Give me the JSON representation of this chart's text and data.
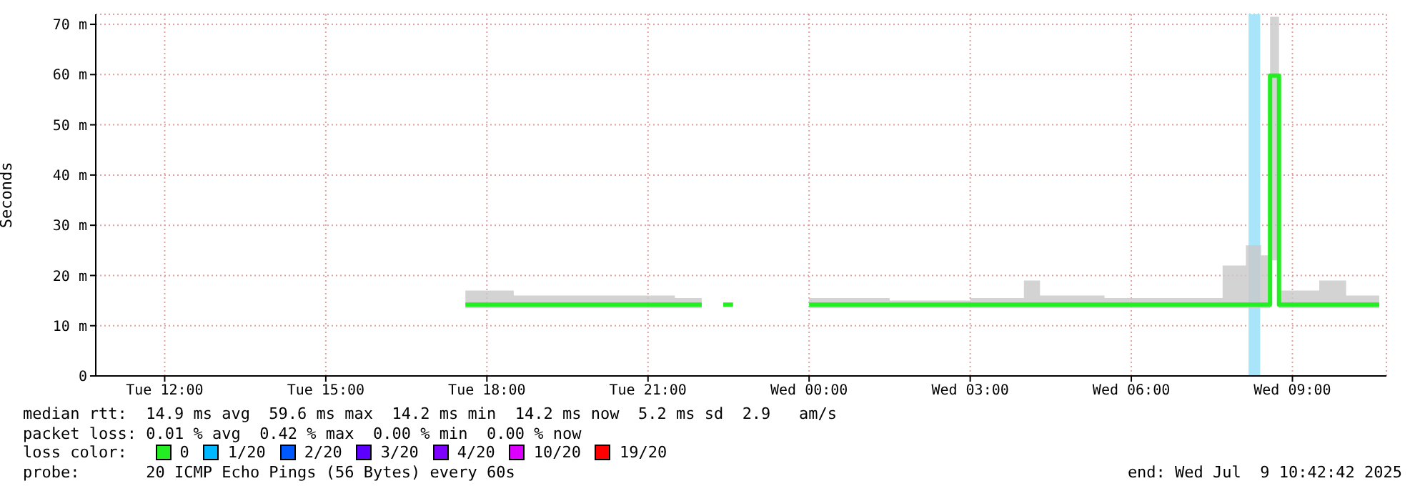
{
  "chart_data": {
    "type": "step",
    "ylabel": "Seconds",
    "legend_title": "loss color:",
    "legend": "bottom",
    "grid": true,
    "marker": "none",
    "line_style": "solid",
    "x": [
      "2025-07-08T17:36",
      "2025-07-08T18:30",
      "2025-07-08T19:30",
      "2025-07-08T20:30",
      "2025-07-08T21:30",
      "2025-07-08T22:00",
      "2025-07-08T22:01",
      "2025-07-08T22:24",
      "2025-07-08T22:35",
      "2025-07-08T22:36",
      "2025-07-09T00:00",
      "2025-07-09T01:30",
      "2025-07-09T03:00",
      "2025-07-09T04:00",
      "2025-07-09T04:18",
      "2025-07-09T05:30",
      "2025-07-09T07:00",
      "2025-07-09T07:42",
      "2025-07-09T08:08",
      "2025-07-09T08:25",
      "2025-07-09T08:35",
      "2025-07-09T08:45",
      "2025-07-09T09:30",
      "2025-07-09T10:00",
      "2025-07-09T10:37"
    ],
    "xlim": [
      "2025-07-08T10:43",
      "2025-07-09T10:45"
    ],
    "xticks": [
      {
        "value": "2025-07-08T12:00",
        "label": "Tue 12:00"
      },
      {
        "value": "2025-07-08T15:00",
        "label": "Tue 15:00"
      },
      {
        "value": "2025-07-08T18:00",
        "label": "Tue 18:00"
      },
      {
        "value": "2025-07-08T21:00",
        "label": "Tue 21:00"
      },
      {
        "value": "2025-07-09T00:00",
        "label": "Wed 00:00"
      },
      {
        "value": "2025-07-09T03:00",
        "label": "Wed 03:00"
      },
      {
        "value": "2025-07-09T06:00",
        "label": "Wed 06:00"
      },
      {
        "value": "2025-07-09T09:00",
        "label": "Wed 09:00"
      }
    ],
    "ylim": [
      0,
      72
    ],
    "yticks": [
      0,
      {
        "value": 10,
        "label": "10 m"
      },
      {
        "value": 20,
        "label": "20 m"
      },
      {
        "value": 30,
        "label": "30 m"
      },
      {
        "value": 40,
        "label": "40 m"
      },
      {
        "value": 50,
        "label": "50 m"
      },
      {
        "value": 60,
        "label": "60 m"
      },
      {
        "value": 70,
        "label": "70 m"
      }
    ],
    "series": [
      {
        "name": "0",
        "color": "#22ee22",
        "values": [
          14.2,
          14.2,
          14.2,
          14.2,
          14.2,
          14.2,
          null,
          14.2,
          14.2,
          null,
          14.2,
          14.2,
          14.2,
          14.2,
          14.2,
          14.2,
          14.2,
          14.2,
          14.2,
          14.2,
          59.8,
          14.2,
          14.2,
          14.2,
          14.2
        ],
        "lower": [
          13.5,
          13.5,
          13.5,
          13.5,
          13.5,
          13.5,
          null,
          null,
          null,
          null,
          13.5,
          13.5,
          13.5,
          13.5,
          13.5,
          13.5,
          13.5,
          13.5,
          13.5,
          13.5,
          23,
          13.5,
          13.5,
          13.5,
          13.5
        ],
        "upper": [
          17,
          16,
          16,
          16,
          15.5,
          15,
          null,
          null,
          null,
          null,
          15.5,
          15,
          15.5,
          19,
          16,
          15.5,
          15.5,
          22,
          26,
          24,
          71.5,
          17,
          19,
          16,
          16
        ]
      },
      {
        "name": "1/20",
        "color": "#00b8ff",
        "values": [
          null,
          null,
          null,
          null,
          null,
          null,
          null,
          null,
          null,
          null,
          null,
          null,
          null,
          null,
          null,
          null,
          null,
          null,
          null,
          null,
          null,
          null,
          null,
          null,
          null
        ]
      },
      {
        "name": "2/20",
        "color": "#0059ff",
        "values": [
          null,
          null,
          null,
          null,
          null,
          null,
          null,
          null,
          null,
          null,
          null,
          null,
          null,
          null,
          null,
          null,
          null,
          null,
          null,
          null,
          null,
          null,
          null,
          null,
          null
        ]
      },
      {
        "name": "3/20",
        "color": "#5e00ff",
        "values": [
          null,
          null,
          null,
          null,
          null,
          null,
          null,
          null,
          null,
          null,
          null,
          null,
          null,
          null,
          null,
          null,
          null,
          null,
          null,
          null,
          null,
          null,
          null,
          null,
          null
        ]
      },
      {
        "name": "4/20",
        "color": "#7e00ff",
        "values": [
          null,
          null,
          null,
          null,
          null,
          null,
          null,
          null,
          null,
          null,
          null,
          null,
          null,
          null,
          null,
          null,
          null,
          null,
          null,
          null,
          null,
          null,
          null,
          null,
          null
        ]
      },
      {
        "name": "10/20",
        "color": "#dd00ff",
        "values": [
          null,
          null,
          null,
          null,
          null,
          null,
          null,
          null,
          null,
          null,
          null,
          null,
          null,
          null,
          null,
          null,
          null,
          null,
          null,
          null,
          null,
          null,
          null,
          null,
          null
        ]
      },
      {
        "name": "19/20",
        "color": "#ff0000",
        "values": [
          null,
          null,
          null,
          null,
          null,
          null,
          null,
          null,
          null,
          null,
          null,
          null,
          null,
          null,
          null,
          null,
          null,
          null,
          null,
          null,
          null,
          null,
          null,
          null,
          null
        ]
      }
    ],
    "bands": [
      {
        "axis": "x",
        "from": "2025-07-09T08:11",
        "to": "2025-07-09T08:24",
        "color": "#a8e4fa"
      }
    ],
    "annotations": [
      "median rtt:  14.9 ms avg  59.6 ms max  14.2 ms min  14.2 ms now  5.2 ms sd  2.9   am/s",
      "packet loss: 0.01 % avg  0.42 % max  0.00 % min  0.00 % now",
      "probe:       20 ICMP Echo Pings (56 Bytes) every 60s",
      "end: Wed Jul  9 10:42:42 2025"
    ]
  }
}
